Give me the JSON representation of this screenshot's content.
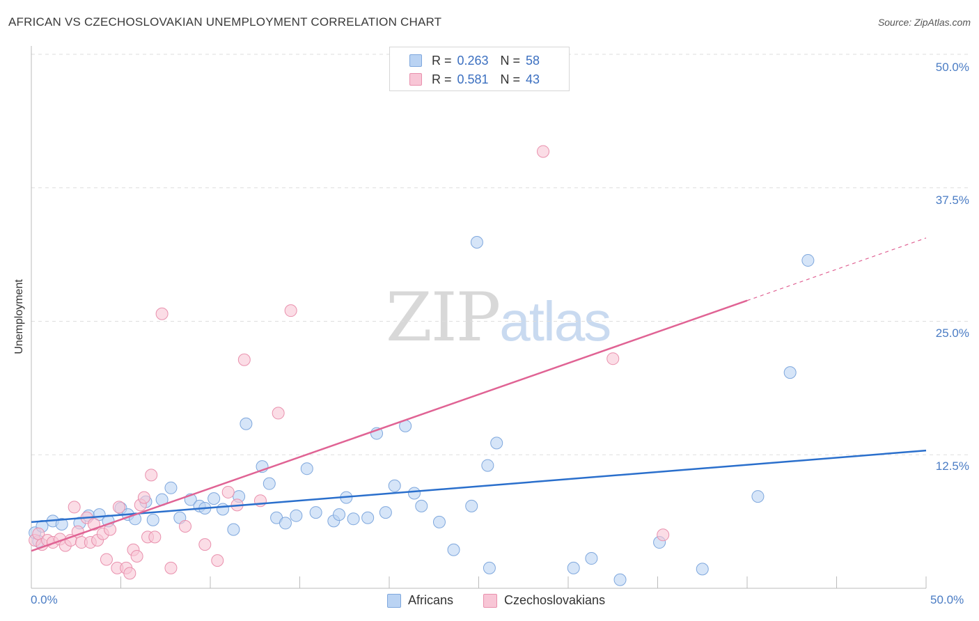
{
  "title": "AFRICAN VS CZECHOSLOVAKIAN UNEMPLOYMENT CORRELATION CHART",
  "source": "Source: ZipAtlas.com",
  "watermark": {
    "zip": "ZIP",
    "atlas": "atlas"
  },
  "legend_stats": [
    {
      "r_label": "R =",
      "r_value": "0.263",
      "n_label": "N =",
      "n_value": "58"
    },
    {
      "r_label": "R =",
      "r_value": "0.581",
      "n_label": "N =",
      "n_value": "43"
    }
  ],
  "colors": {
    "africans_fill": "#bad3f3",
    "africans_stroke": "#7ea7dd",
    "africans_line": "#2a6fcc",
    "czech_fill": "#f8c6d6",
    "czech_stroke": "#e990ad",
    "czech_line": "#e06394",
    "grid": "#dddddd",
    "axis_text": "#4a7cc4"
  },
  "chart_data": {
    "type": "scatter",
    "title": "AFRICAN VS CZECHOSLOVAKIAN UNEMPLOYMENT CORRELATION CHART",
    "xlabel": "",
    "ylabel": "Unemployment",
    "xlim": [
      0,
      50
    ],
    "ylim": [
      0,
      50
    ],
    "x_tick_labels": [
      "0.0%",
      "50.0%"
    ],
    "y_ticks": [
      12.5,
      25.0,
      37.5,
      50.0
    ],
    "y_tick_labels": [
      "12.5%",
      "25.0%",
      "37.5%",
      "50.0%"
    ],
    "grid": true,
    "legend_position": "bottom-center",
    "series": [
      {
        "name": "Africans",
        "r": 0.263,
        "n": 58,
        "trend": {
          "x": [
            0,
            50
          ],
          "y": [
            6.2,
            12.9
          ]
        },
        "points": [
          [
            0.2,
            5.2
          ],
          [
            0.6,
            5.8
          ],
          [
            1.2,
            6.3
          ],
          [
            1.7,
            6.0
          ],
          [
            2.7,
            6.1
          ],
          [
            3.2,
            6.8
          ],
          [
            3.8,
            6.9
          ],
          [
            4.3,
            6.3
          ],
          [
            5.0,
            7.5
          ],
          [
            5.4,
            6.9
          ],
          [
            5.8,
            6.5
          ],
          [
            6.4,
            8.1
          ],
          [
            6.8,
            6.4
          ],
          [
            7.3,
            8.3
          ],
          [
            7.8,
            9.4
          ],
          [
            8.3,
            6.6
          ],
          [
            8.9,
            8.3
          ],
          [
            9.4,
            7.7
          ],
          [
            9.7,
            7.5
          ],
          [
            10.2,
            8.4
          ],
          [
            10.7,
            7.4
          ],
          [
            11.3,
            5.5
          ],
          [
            11.6,
            8.6
          ],
          [
            12.0,
            15.4
          ],
          [
            12.9,
            11.4
          ],
          [
            13.3,
            9.8
          ],
          [
            13.7,
            6.6
          ],
          [
            14.2,
            6.1
          ],
          [
            14.8,
            6.8
          ],
          [
            15.4,
            11.2
          ],
          [
            15.9,
            7.1
          ],
          [
            16.9,
            6.3
          ],
          [
            17.2,
            6.9
          ],
          [
            17.6,
            8.5
          ],
          [
            18.0,
            6.5
          ],
          [
            18.8,
            6.6
          ],
          [
            19.3,
            14.5
          ],
          [
            19.8,
            7.1
          ],
          [
            20.3,
            9.6
          ],
          [
            20.9,
            15.2
          ],
          [
            21.4,
            8.9
          ],
          [
            21.8,
            7.7
          ],
          [
            22.8,
            6.2
          ],
          [
            23.6,
            3.6
          ],
          [
            24.6,
            7.7
          ],
          [
            24.9,
            32.4
          ],
          [
            25.5,
            11.5
          ],
          [
            25.6,
            1.9
          ],
          [
            26.0,
            13.6
          ],
          [
            30.3,
            1.9
          ],
          [
            31.3,
            2.8
          ],
          [
            32.9,
            0.8
          ],
          [
            35.1,
            4.3
          ],
          [
            37.5,
            1.8
          ],
          [
            40.6,
            8.6
          ],
          [
            42.4,
            20.2
          ],
          [
            43.4,
            30.7
          ],
          [
            0.4,
            4.4
          ]
        ]
      },
      {
        "name": "Czechoslovakians",
        "r": 0.581,
        "n": 43,
        "trend": {
          "x": [
            0,
            50
          ],
          "y": [
            3.5,
            32.8
          ]
        },
        "trend_solid_until_x": 40.0,
        "points": [
          [
            0.2,
            4.5
          ],
          [
            0.4,
            5.1
          ],
          [
            0.6,
            4.1
          ],
          [
            0.9,
            4.5
          ],
          [
            1.2,
            4.3
          ],
          [
            1.6,
            4.6
          ],
          [
            1.9,
            4.0
          ],
          [
            2.2,
            4.5
          ],
          [
            2.4,
            7.6
          ],
          [
            2.6,
            5.3
          ],
          [
            2.8,
            4.3
          ],
          [
            3.1,
            6.6
          ],
          [
            3.3,
            4.3
          ],
          [
            3.5,
            6.0
          ],
          [
            3.7,
            4.5
          ],
          [
            4.0,
            5.1
          ],
          [
            4.2,
            2.7
          ],
          [
            4.4,
            5.5
          ],
          [
            4.8,
            1.9
          ],
          [
            4.9,
            7.6
          ],
          [
            5.3,
            1.9
          ],
          [
            5.5,
            1.4
          ],
          [
            5.7,
            3.6
          ],
          [
            5.9,
            3.0
          ],
          [
            6.1,
            7.8
          ],
          [
            6.3,
            8.5
          ],
          [
            6.5,
            4.8
          ],
          [
            6.7,
            10.6
          ],
          [
            6.9,
            4.8
          ],
          [
            7.3,
            25.7
          ],
          [
            7.8,
            1.9
          ],
          [
            8.6,
            5.8
          ],
          [
            9.7,
            4.1
          ],
          [
            10.4,
            2.6
          ],
          [
            11.0,
            9.0
          ],
          [
            11.5,
            7.8
          ],
          [
            11.9,
            21.4
          ],
          [
            12.8,
            8.2
          ],
          [
            13.8,
            16.4
          ],
          [
            14.5,
            26.0
          ],
          [
            28.6,
            40.9
          ],
          [
            32.5,
            21.5
          ],
          [
            35.3,
            5.0
          ]
        ]
      }
    ]
  }
}
